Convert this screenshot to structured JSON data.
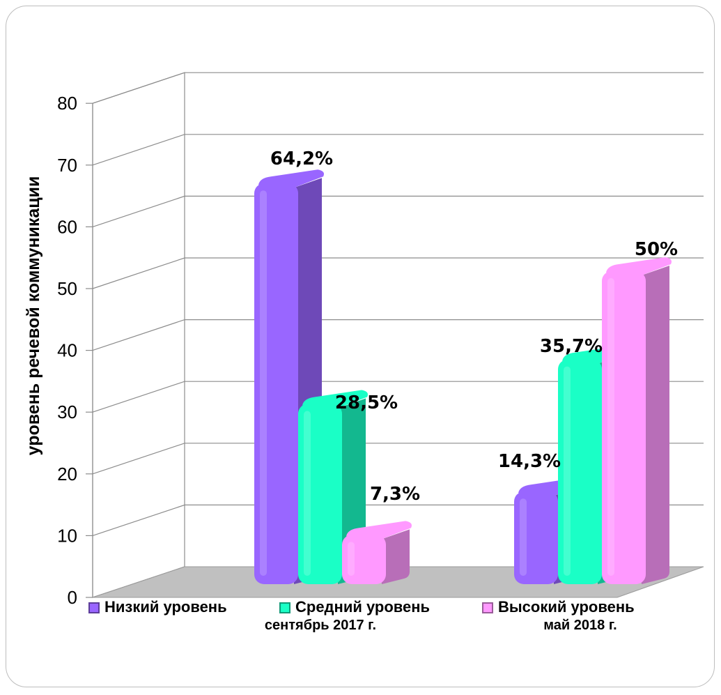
{
  "chart_data": {
    "type": "bar",
    "title": "",
    "xlabel": "",
    "ylabel": "уровень речевой коммуникации",
    "ylim": [
      0,
      80
    ],
    "yticks": [
      0,
      10,
      20,
      30,
      40,
      50,
      60,
      70,
      80
    ],
    "grid": true,
    "legend_position": "bottom",
    "categories": [
      "сентябрь 2017 г.",
      "май 2018 г."
    ],
    "series": [
      {
        "name": "Низкий уровень",
        "values": [
          64.2,
          14.3
        ],
        "labels": [
          "64,2%",
          "14,3%"
        ],
        "color": "#9966ff"
      },
      {
        "name": "Средний уровень",
        "values": [
          28.5,
          35.7
        ],
        "labels": [
          "28,5%",
          "35,7%"
        ],
        "color": "#1affc6"
      },
      {
        "name": "Высокий уровень",
        "values": [
          7.3,
          50
        ],
        "labels": [
          "7,3%",
          "50%"
        ],
        "color": "#ff99ff"
      }
    ]
  }
}
